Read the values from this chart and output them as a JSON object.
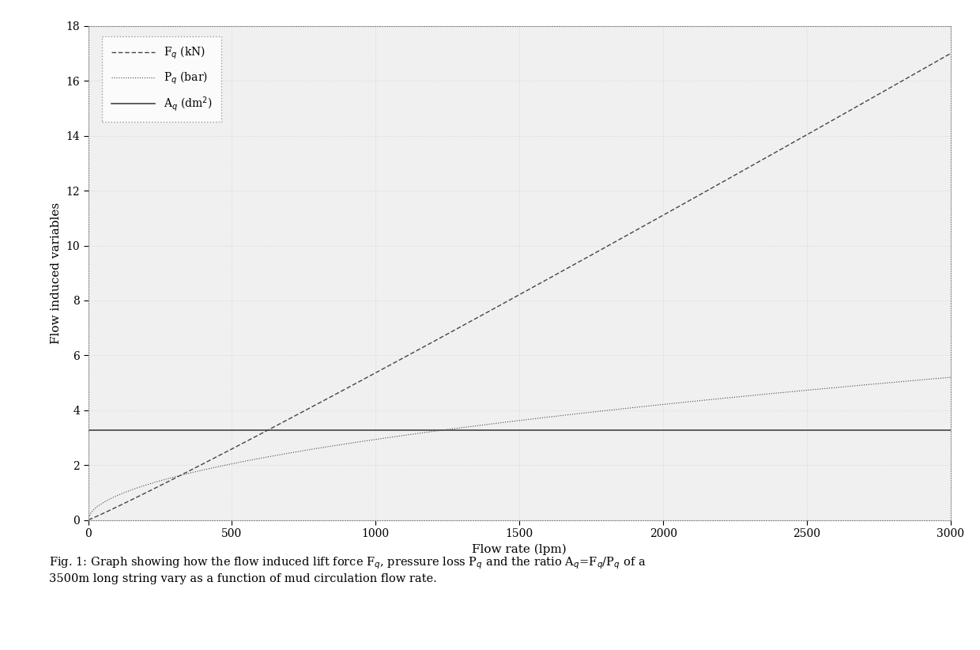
{
  "title": "",
  "xlabel": "Flow rate (lpm)",
  "ylabel": "Flow induced variables",
  "xlim": [
    0,
    3000
  ],
  "ylim": [
    0,
    18
  ],
  "xticks": [
    0,
    500,
    1000,
    1500,
    2000,
    2500,
    3000
  ],
  "yticks": [
    0,
    2,
    4,
    6,
    8,
    10,
    12,
    14,
    16,
    18
  ],
  "q_max": 3000,
  "q_min": 1,
  "n_points": 400,
  "Fq_scale": 17.0,
  "Fq_exponent": 1.05,
  "Pq_scale": 5.2,
  "Pq_exponent": 0.52,
  "Aq_constant": 3.27,
  "legend_labels": [
    "F$_q$ (kN)",
    "P$_q$ (bar)",
    "A$_q$ (dm$^2$)"
  ],
  "fig_caption": "Fig. 1: Graph showing how the flow induced lift force F$_q$, pressure loss P$_q$ and the ratio A$_q$=F$_q$/P$_q$ of a\n3500m long string vary as a function of mud circulation flow rate.",
  "background_color": "#f0f0f0",
  "line_color": "#444444",
  "figsize": [
    12.4,
    8.22
  ],
  "dpi": 100
}
